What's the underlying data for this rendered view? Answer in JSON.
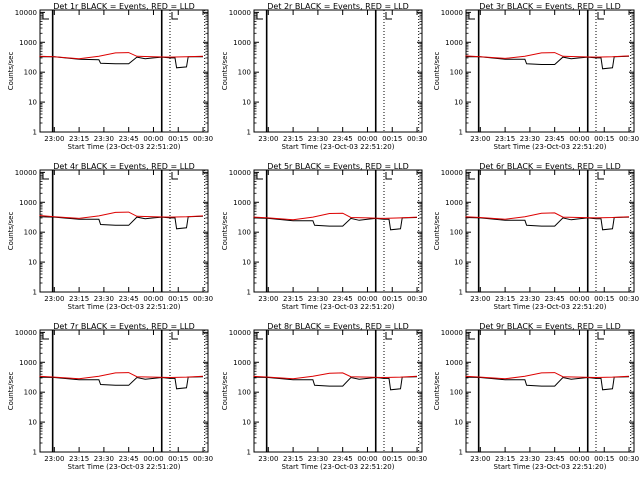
{
  "figure": {
    "title_suffix": "BLACK = Events, RED = LLD",
    "xlabel": "Start Time (23-Oct-03 22:51:20)",
    "ylabel": "Counts/sec"
  },
  "chart_data": [
    {
      "panel": "Det 1r",
      "type": "line",
      "title": "Det 1r BLACK = Events, RED = LLD",
      "ylabel": "Counts/sec",
      "xlabel": "Start Time (23-Oct-03 22:51:20)",
      "yscale": "log",
      "ylim": [
        1,
        12000
      ],
      "xlim": [
        "22:51:20",
        "00:33:00"
      ],
      "xticks": [
        "23:00",
        "23:15",
        "23:30",
        "23:45",
        "00:00",
        "00:15",
        "00:30"
      ],
      "yticks": [
        "1",
        "10",
        "100",
        "1000",
        "10000"
      ],
      "vlines_solid": [
        "22:59",
        "00:05"
      ],
      "vlines_dotted": [
        "00:10",
        "00:31"
      ],
      "series": [
        {
          "name": "BLACK = Events",
          "color": "#000000",
          "x": [
            "22:51",
            "23:00",
            "23:15",
            "23:27",
            "23:28",
            "23:37",
            "23:45",
            "23:50",
            "23:55",
            "00:00",
            "00:05",
            "00:10",
            "00:13",
            "00:14",
            "00:20",
            "00:21",
            "00:30"
          ],
          "y": [
            330,
            330,
            270,
            260,
            200,
            190,
            190,
            320,
            280,
            300,
            320,
            300,
            300,
            140,
            150,
            330,
            330
          ]
        },
        {
          "name": "RED = LLD",
          "color": "#dd0000",
          "x": [
            "22:51",
            "23:00",
            "23:15",
            "23:27",
            "23:37",
            "23:45",
            "23:50",
            "00:00",
            "00:10",
            "00:20",
            "00:30"
          ],
          "y": [
            340,
            330,
            280,
            340,
            440,
            450,
            340,
            330,
            320,
            330,
            340
          ]
        }
      ]
    },
    {
      "panel": "Det 2r",
      "type": "line",
      "title": "Det 2r BLACK = Events, RED = LLD",
      "ylabel": "Counts/sec",
      "xlabel": "Start Time (23-Oct-03 22:51:20)",
      "yscale": "log",
      "ylim": [
        1,
        12000
      ],
      "xlim": [
        "22:51:20",
        "00:33:00"
      ],
      "xticks": [
        "23:00",
        "23:15",
        "23:30",
        "23:45",
        "00:00",
        "00:15",
        "00:30"
      ],
      "yticks": [
        "1",
        "10",
        "100",
        "1000",
        "10000"
      ],
      "vlines_solid": [
        "22:59",
        "00:05"
      ],
      "vlines_dotted": [
        "00:10",
        "00:31"
      ],
      "series": []
    },
    {
      "panel": "Det 3r",
      "type": "line",
      "title": "Det 3r BLACK = Events, RED = LLD",
      "ylabel": "Counts/sec",
      "xlabel": "Start Time (23-Oct-03 22:51:20)",
      "yscale": "log",
      "ylim": [
        1,
        12000
      ],
      "xlim": [
        "22:51:20",
        "00:33:00"
      ],
      "xticks": [
        "23:00",
        "23:15",
        "23:30",
        "23:45",
        "00:00",
        "00:15",
        "00:30"
      ],
      "yticks": [
        "1",
        "10",
        "100",
        "1000",
        "10000"
      ],
      "vlines_solid": [
        "22:59",
        "00:05"
      ],
      "vlines_dotted": [
        "00:10",
        "00:31"
      ],
      "series": [
        {
          "name": "BLACK = Events",
          "color": "#000000",
          "x": [
            "22:51",
            "23:00",
            "23:15",
            "23:27",
            "23:28",
            "23:37",
            "23:45",
            "23:50",
            "23:55",
            "00:00",
            "00:05",
            "00:10",
            "00:13",
            "00:14",
            "00:20",
            "00:21",
            "00:30"
          ],
          "y": [
            330,
            330,
            270,
            270,
            190,
            180,
            180,
            320,
            280,
            300,
            320,
            300,
            300,
            130,
            140,
            330,
            340
          ]
        },
        {
          "name": "RED = LLD",
          "color": "#dd0000",
          "x": [
            "22:51",
            "23:00",
            "23:15",
            "23:27",
            "23:37",
            "23:45",
            "23:50",
            "00:00",
            "00:10",
            "00:20",
            "00:30"
          ],
          "y": [
            350,
            330,
            290,
            340,
            440,
            450,
            340,
            330,
            320,
            330,
            350
          ]
        }
      ]
    },
    {
      "panel": "Det 4r",
      "type": "line",
      "title": "Det 4r BLACK = Events, RED = LLD",
      "ylabel": "Counts/sec",
      "xlabel": "Start Time (23-Oct-03 22:51:20)",
      "yscale": "log",
      "ylim": [
        1,
        12000
      ],
      "xlim": [
        "22:51:20",
        "00:33:00"
      ],
      "xticks": [
        "23:00",
        "23:15",
        "23:30",
        "23:45",
        "00:00",
        "00:15",
        "00:30"
      ],
      "yticks": [
        "1",
        "10",
        "100",
        "1000",
        "10000"
      ],
      "vlines_solid": [
        "22:59",
        "00:05"
      ],
      "vlines_dotted": [
        "00:10",
        "00:31"
      ],
      "series": [
        {
          "name": "BLACK = Events",
          "color": "#000000",
          "x": [
            "22:51",
            "23:00",
            "23:15",
            "23:27",
            "23:28",
            "23:37",
            "23:45",
            "23:50",
            "23:55",
            "00:00",
            "00:05",
            "00:10",
            "00:13",
            "00:14",
            "00:20",
            "00:21",
            "00:30"
          ],
          "y": [
            330,
            320,
            270,
            270,
            180,
            170,
            170,
            320,
            280,
            300,
            320,
            300,
            300,
            130,
            140,
            330,
            340
          ]
        },
        {
          "name": "RED = LLD",
          "color": "#dd0000",
          "x": [
            "22:51",
            "23:00",
            "23:15",
            "23:27",
            "23:37",
            "23:45",
            "23:50",
            "00:00",
            "00:10",
            "00:20",
            "00:30"
          ],
          "y": [
            360,
            330,
            290,
            350,
            460,
            470,
            340,
            330,
            320,
            330,
            350
          ]
        }
      ]
    },
    {
      "panel": "Det 5r",
      "type": "line",
      "title": "Det 5r BLACK = Events, RED = LLD",
      "ylabel": "Counts/sec",
      "xlabel": "Start Time (23-Oct-03 22:51:20)",
      "yscale": "log",
      "ylim": [
        1,
        12000
      ],
      "xlim": [
        "22:51:20",
        "00:33:00"
      ],
      "xticks": [
        "23:00",
        "23:15",
        "23:30",
        "23:45",
        "00:00",
        "00:15",
        "00:30"
      ],
      "yticks": [
        "1",
        "10",
        "100",
        "1000",
        "10000"
      ],
      "vlines_solid": [
        "22:59",
        "00:05"
      ],
      "vlines_dotted": [
        "00:10",
        "00:31"
      ],
      "series": [
        {
          "name": "BLACK = Events",
          "color": "#000000",
          "x": [
            "22:51",
            "23:00",
            "23:15",
            "23:27",
            "23:28",
            "23:37",
            "23:45",
            "23:50",
            "23:55",
            "00:00",
            "00:05",
            "00:10",
            "00:13",
            "00:14",
            "00:20",
            "00:21",
            "00:30"
          ],
          "y": [
            300,
            290,
            240,
            240,
            170,
            160,
            160,
            290,
            250,
            270,
            290,
            270,
            270,
            120,
            130,
            300,
            310
          ]
        },
        {
          "name": "RED = LLD",
          "color": "#dd0000",
          "x": [
            "22:51",
            "23:00",
            "23:15",
            "23:27",
            "23:37",
            "23:45",
            "23:50",
            "00:00",
            "00:10",
            "00:20",
            "00:30"
          ],
          "y": [
            320,
            300,
            260,
            320,
            420,
            430,
            310,
            300,
            290,
            300,
            320
          ]
        }
      ]
    },
    {
      "panel": "Det 6r",
      "type": "line",
      "title": "Det 6r BLACK = Events, RED = LLD",
      "ylabel": "Counts/sec",
      "xlabel": "Start Time (23-Oct-03 22:51:20)",
      "yscale": "log",
      "ylim": [
        1,
        12000
      ],
      "xlim": [
        "22:51:20",
        "00:33:00"
      ],
      "xticks": [
        "23:00",
        "23:15",
        "23:30",
        "23:45",
        "00:00",
        "00:15",
        "00:30"
      ],
      "yticks": [
        "1",
        "10",
        "100",
        "1000",
        "10000"
      ],
      "vlines_solid": [
        "22:59",
        "00:05"
      ],
      "vlines_dotted": [
        "00:10",
        "00:31"
      ],
      "series": [
        {
          "name": "BLACK = Events",
          "color": "#000000",
          "x": [
            "22:51",
            "23:00",
            "23:15",
            "23:27",
            "23:28",
            "23:37",
            "23:45",
            "23:50",
            "23:55",
            "00:00",
            "00:05",
            "00:10",
            "00:13",
            "00:14",
            "00:20",
            "00:21",
            "00:30"
          ],
          "y": [
            310,
            300,
            250,
            250,
            170,
            160,
            160,
            300,
            260,
            280,
            300,
            280,
            280,
            120,
            130,
            310,
            320
          ]
        },
        {
          "name": "RED = LLD",
          "color": "#dd0000",
          "x": [
            "22:51",
            "23:00",
            "23:15",
            "23:27",
            "23:37",
            "23:45",
            "23:50",
            "00:00",
            "00:10",
            "00:20",
            "00:30"
          ],
          "y": [
            330,
            310,
            270,
            330,
            430,
            440,
            320,
            310,
            300,
            310,
            330
          ]
        }
      ]
    },
    {
      "panel": "Det 7r",
      "type": "line",
      "title": "Det 7r BLACK = Events, RED = LLD",
      "ylabel": "Counts/sec",
      "xlabel": "Start Time (23-Oct-03 22:51:20)",
      "yscale": "log",
      "ylim": [
        1,
        12000
      ],
      "xlim": [
        "22:51:20",
        "00:33:00"
      ],
      "xticks": [
        "23:00",
        "23:15",
        "23:30",
        "23:45",
        "00:00",
        "00:15",
        "00:30"
      ],
      "yticks": [
        "1",
        "10",
        "100",
        "1000",
        "10000"
      ],
      "vlines_solid": [
        "22:59",
        "00:05"
      ],
      "vlines_dotted": [
        "00:10",
        "00:31"
      ],
      "series": [
        {
          "name": "BLACK = Events",
          "color": "#000000",
          "x": [
            "22:51",
            "23:00",
            "23:15",
            "23:27",
            "23:28",
            "23:37",
            "23:45",
            "23:50",
            "23:55",
            "00:00",
            "00:05",
            "00:10",
            "00:13",
            "00:14",
            "00:20",
            "00:21",
            "00:30"
          ],
          "y": [
            320,
            310,
            260,
            260,
            180,
            170,
            170,
            310,
            270,
            290,
            310,
            290,
            290,
            130,
            140,
            320,
            330
          ]
        },
        {
          "name": "RED = LLD",
          "color": "#dd0000",
          "x": [
            "22:51",
            "23:00",
            "23:15",
            "23:27",
            "23:37",
            "23:45",
            "23:50",
            "00:00",
            "00:10",
            "00:20",
            "00:30"
          ],
          "y": [
            340,
            320,
            280,
            340,
            440,
            450,
            330,
            320,
            310,
            320,
            340
          ]
        }
      ]
    },
    {
      "panel": "Det 8r",
      "type": "line",
      "title": "Det 8r BLACK = Events, RED = LLD",
      "ylabel": "Counts/sec",
      "xlabel": "Start Time (23-Oct-03 22:51:20)",
      "yscale": "log",
      "ylim": [
        1,
        12000
      ],
      "xlim": [
        "22:51:20",
        "00:33:00"
      ],
      "xticks": [
        "23:00",
        "23:15",
        "23:30",
        "23:45",
        "00:00",
        "00:15",
        "00:30"
      ],
      "yticks": [
        "1",
        "10",
        "100",
        "1000",
        "10000"
      ],
      "vlines_solid": [
        "22:59",
        "00:05"
      ],
      "vlines_dotted": [
        "00:10",
        "00:31"
      ],
      "series": [
        {
          "name": "BLACK = Events",
          "color": "#000000",
          "x": [
            "22:51",
            "23:00",
            "23:15",
            "23:27",
            "23:28",
            "23:37",
            "23:45",
            "23:50",
            "23:55",
            "00:00",
            "00:05",
            "00:10",
            "00:13",
            "00:14",
            "00:20",
            "00:21",
            "00:30"
          ],
          "y": [
            320,
            310,
            260,
            260,
            170,
            160,
            160,
            310,
            270,
            290,
            310,
            290,
            290,
            120,
            130,
            320,
            330
          ]
        },
        {
          "name": "RED = LLD",
          "color": "#dd0000",
          "x": [
            "22:51",
            "23:00",
            "23:15",
            "23:27",
            "23:37",
            "23:45",
            "23:50",
            "00:00",
            "00:10",
            "00:20",
            "00:30"
          ],
          "y": [
            340,
            320,
            280,
            340,
            430,
            440,
            330,
            320,
            310,
            320,
            340
          ]
        }
      ]
    },
    {
      "panel": "Det 9r",
      "type": "line",
      "title": "Det 9r BLACK = Events, RED = LLD",
      "ylabel": "Counts/sec",
      "xlabel": "Start Time (23-Oct-03 22:51:20)",
      "yscale": "log",
      "ylim": [
        1,
        12000
      ],
      "xlim": [
        "22:51:20",
        "00:33:00"
      ],
      "xticks": [
        "23:00",
        "23:15",
        "23:30",
        "23:45",
        "00:00",
        "00:15",
        "00:30"
      ],
      "yticks": [
        "1",
        "10",
        "100",
        "1000",
        "10000"
      ],
      "vlines_solid": [
        "22:59",
        "00:05"
      ],
      "vlines_dotted": [
        "00:10",
        "00:31"
      ],
      "series": [
        {
          "name": "BLACK = Events",
          "color": "#000000",
          "x": [
            "22:51",
            "23:00",
            "23:15",
            "23:27",
            "23:28",
            "23:37",
            "23:45",
            "23:50",
            "23:55",
            "00:00",
            "00:05",
            "00:10",
            "00:13",
            "00:14",
            "00:20",
            "00:21",
            "00:30"
          ],
          "y": [
            320,
            310,
            260,
            260,
            170,
            160,
            160,
            310,
            270,
            290,
            310,
            290,
            290,
            120,
            130,
            320,
            330
          ]
        },
        {
          "name": "RED = LLD",
          "color": "#dd0000",
          "x": [
            "22:51",
            "23:00",
            "23:15",
            "23:27",
            "23:37",
            "23:45",
            "23:50",
            "00:00",
            "00:10",
            "00:20",
            "00:30"
          ],
          "y": [
            340,
            320,
            280,
            340,
            440,
            450,
            330,
            320,
            310,
            320,
            340
          ]
        }
      ]
    }
  ]
}
